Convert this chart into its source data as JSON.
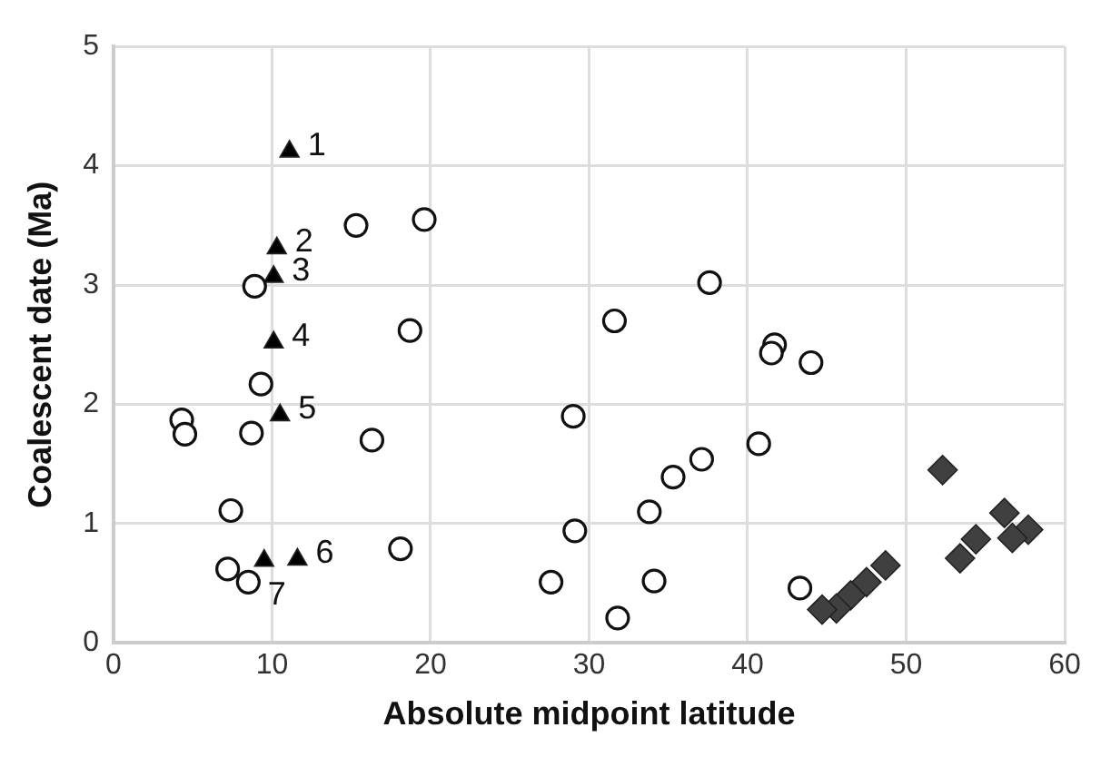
{
  "chart_data": {
    "type": "scatter",
    "xlabel": "Absolute midpoint latitude",
    "ylabel": "Coalescent date (Ma)",
    "xlim": [
      0,
      60
    ],
    "xticks": [
      0,
      10,
      20,
      30,
      40,
      50,
      60
    ],
    "ylim": [
      0,
      5
    ],
    "yticks": [
      0,
      1,
      2,
      3,
      4,
      5
    ],
    "grid": true,
    "legend": false,
    "series": [
      {
        "color": "#ffffff",
        "marker": "circle",
        "x": [
          15.3,
          19.6,
          8.9,
          18.7,
          9.3,
          4.3,
          4.5,
          8.7,
          16.3,
          7.4,
          18.1,
          7.2,
          8.5,
          37.6,
          31.6,
          41.7,
          41.5,
          44.0,
          29.0,
          40.7,
          37.1,
          35.3,
          33.8,
          29.1,
          27.6,
          34.1,
          31.8,
          43.3
        ],
        "values": [
          3.5,
          3.55,
          2.99,
          2.62,
          2.17,
          1.87,
          1.75,
          1.76,
          1.7,
          1.11,
          0.79,
          0.62,
          0.51,
          3.02,
          2.7,
          2.5,
          2.43,
          2.35,
          1.9,
          1.67,
          1.54,
          1.39,
          1.1,
          0.94,
          0.51,
          0.52,
          0.21,
          0.46
        ]
      },
      {
        "color": "#000000",
        "marker": "triangle",
        "x": [
          11.1,
          10.3,
          10.1,
          10.1,
          10.5,
          9.5,
          11.6
        ],
        "values": [
          4.12,
          3.31,
          3.07,
          2.52,
          1.91,
          0.69,
          0.7
        ]
      },
      {
        "color": "#404040",
        "marker": "diamond",
        "x": [
          52.3,
          56.2,
          57.7,
          56.7,
          54.4,
          53.4,
          48.7,
          47.5,
          46.5,
          45.6,
          44.7
        ],
        "values": [
          1.45,
          1.09,
          0.95,
          0.88,
          0.87,
          0.71,
          0.65,
          0.51,
          0.4,
          0.29,
          0.28
        ]
      }
    ],
    "annotations": [
      {
        "text": "1",
        "x": 11.1,
        "y": 4.12
      },
      {
        "text": "2",
        "x": 10.3,
        "y": 3.31
      },
      {
        "text": "3",
        "x": 10.1,
        "y": 3.07
      },
      {
        "text": "4",
        "x": 10.1,
        "y": 2.52
      },
      {
        "text": "5",
        "x": 10.5,
        "y": 1.91
      },
      {
        "text": "6",
        "x": 11.6,
        "y": 0.7
      },
      {
        "text": "7",
        "x": 9.5,
        "y": 0.69
      }
    ]
  }
}
